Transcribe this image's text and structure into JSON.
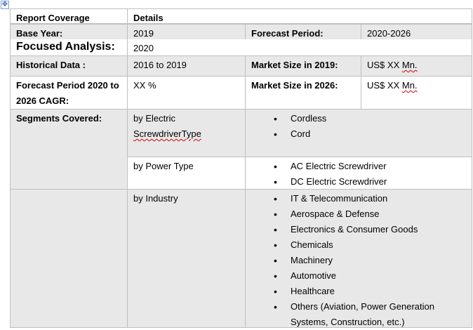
{
  "table": {
    "header": {
      "col1": "Report Coverage",
      "col2": "Details"
    },
    "base_year": {
      "label": "Base Year:",
      "value": "2019",
      "label2": "Forecast Period:",
      "value2": "2020-2026"
    },
    "focused": {
      "label": "Focused Analysis:",
      "value": "2020"
    },
    "historical": {
      "label": "Historical Data :",
      "value": "2016 to 2019",
      "label2": "Market Size in 2019:",
      "value2_prefix": "US$ XX ",
      "value2_unit": "Mn."
    },
    "forecast": {
      "label": "Forecast Period 2020 to 2026 CAGR:",
      "value": "XX %",
      "label2": "Market Size in 2026:",
      "value2_prefix": "US$ XX ",
      "value2_unit": "Mn."
    },
    "segments": {
      "label": "Segments Covered:",
      "groups": [
        {
          "name_line1": "by Electric",
          "name_line2": "ScrewdriverType",
          "items": [
            "Cordless",
            "Cord"
          ]
        },
        {
          "name": "by Power  Type",
          "items": [
            "AC Electric Screwdriver",
            "DC Electric Screwdriver"
          ]
        },
        {
          "name": "by Industry",
          "items": [
            "IT & Telecommunication",
            "Aerospace & Defense",
            "Electronics & Consumer Goods",
            "Chemicals",
            "Machinery",
            "Automotive",
            "Healthcare",
            "Others (Aviation, Power Generation Systems, Construction, etc.)"
          ]
        }
      ]
    }
  },
  "icons": {
    "table_handle": "move-arrows-icon"
  },
  "colors": {
    "shaded_row": "#e8e8e8",
    "border": "#bfbfbf"
  }
}
